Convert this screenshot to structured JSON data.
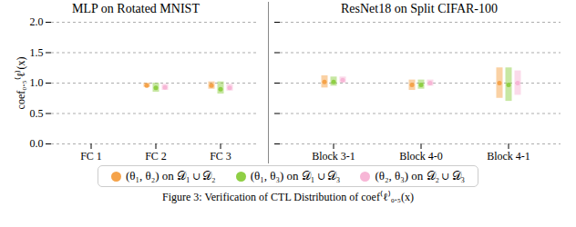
{
  "chart_data": [
    {
      "type": "strip",
      "title": "MLP on Rotated MNIST",
      "y_label": "coef₀.₅⁽ℓ⁾(x)",
      "categories": [
        "FC 1",
        "FC 2",
        "FC 3"
      ],
      "series": [
        {
          "name": "(θ₁, θ₂) on 𝒟₁ ∪ 𝒟₂",
          "color": "#f5a34a",
          "values": [
            null,
            0.96,
            0.96
          ],
          "ranges": [
            null,
            [
              0.93,
              1.0
            ],
            [
              0.9,
              1.02
            ]
          ]
        },
        {
          "name": "(θ₁, θ₃) on 𝒟₁ ∪ 𝒟₃",
          "color": "#8fcf45",
          "values": [
            null,
            0.92,
            0.9
          ],
          "ranges": [
            null,
            [
              0.85,
              1.0
            ],
            [
              0.82,
              1.02
            ]
          ]
        },
        {
          "name": "(θ₂, θ₃) on 𝒟₂ ∪ 𝒟₃",
          "color": "#f7b6d6",
          "values": [
            null,
            0.93,
            0.92
          ],
          "ranges": [
            null,
            [
              0.88,
              0.98
            ],
            [
              0.87,
              0.98
            ]
          ]
        }
      ],
      "ylim": [
        0,
        2
      ],
      "yticks": [
        {
          "value": 0,
          "label": "0.0"
        },
        {
          "value": 0.5,
          "label": "0.5"
        },
        {
          "value": 1,
          "label": "1.0"
        },
        {
          "value": 1.5,
          "label": "1.5"
        },
        {
          "value": 2,
          "label": "2.0"
        }
      ],
      "grid": true
    },
    {
      "type": "strip",
      "title": "ResNet18 on Split CIFAR-100",
      "categories": [
        "Block 3-1",
        "Block 4-0",
        "Block 4-1"
      ],
      "series": [
        {
          "name": "(θ₁, θ₂) on 𝒟₁ ∪ 𝒟₂",
          "color": "#f5a34a",
          "values": [
            1.02,
            0.97,
            1.0
          ],
          "ranges": [
            [
              0.92,
              1.12
            ],
            [
              0.88,
              1.05
            ],
            [
              0.75,
              1.25
            ]
          ]
        },
        {
          "name": "(θ₁, θ₃) on 𝒟₁ ∪ 𝒟₃",
          "color": "#8fcf45",
          "values": [
            1.02,
            0.97,
            0.97
          ],
          "ranges": [
            [
              0.95,
              1.1
            ],
            [
              0.9,
              1.05
            ],
            [
              0.7,
              1.25
            ]
          ]
        },
        {
          "name": "(θ₂, θ₃) on 𝒟₂ ∪ 𝒟₃",
          "color": "#f7b6d6",
          "values": [
            1.05,
            1.0,
            1.0
          ],
          "ranges": [
            [
              1.0,
              1.1
            ],
            [
              0.95,
              1.05
            ],
            [
              0.8,
              1.2
            ]
          ]
        }
      ],
      "ylim": [
        0,
        2
      ],
      "yticks": [
        {
          "value": 0,
          "label": "0.0"
        },
        {
          "value": 0.5,
          "label": "0.5"
        },
        {
          "value": 1,
          "label": "1.0"
        },
        {
          "value": 1.5,
          "label": "1.5"
        },
        {
          "value": 2,
          "label": "2.0"
        }
      ],
      "grid": true,
      "tick_labels": "x"
    }
  ],
  "caption": "Figure 3: Verification of CTL Distribution of coef⁽ℓ⁾₀.₅(x)"
}
